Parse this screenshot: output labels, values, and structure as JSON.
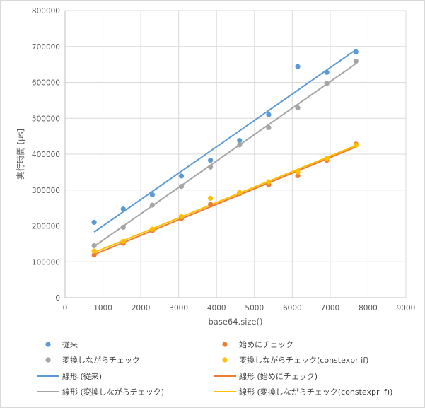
{
  "chart_data": {
    "type": "scatter",
    "title": "",
    "xlabel": "base64.size()",
    "ylabel": "実行時間 [µs]",
    "xlim": [
      0,
      9000
    ],
    "ylim": [
      0,
      800000
    ],
    "xticks": [
      "0",
      "1000",
      "2000",
      "3000",
      "4000",
      "5000",
      "6000",
      "7000",
      "8000",
      "9000"
    ],
    "yticks": [
      "0",
      "100000",
      "200000",
      "300000",
      "400000",
      "500000",
      "600000",
      "700000",
      "800000"
    ],
    "grid": true,
    "legend_position": "bottom",
    "colors": {
      "blue": "#5b9bd5",
      "orange": "#ed7d31",
      "gray": "#a5a5a5",
      "yellow": "#ffc000"
    },
    "x": [
      768,
      1536,
      2304,
      3072,
      3840,
      4608,
      5376,
      6144,
      6912,
      7680
    ],
    "series": [
      {
        "name": "従来",
        "color": "#5b9bd5",
        "values": [
          210000,
          247000,
          287000,
          339000,
          383000,
          438000,
          510000,
          644000,
          628000,
          685000
        ]
      },
      {
        "name": "始めにチェック",
        "color": "#ed7d31",
        "values": [
          119000,
          152000,
          187000,
          221000,
          260000,
          290000,
          315000,
          340000,
          383000,
          428000
        ]
      },
      {
        "name": "変換しながらチェック",
        "color": "#a5a5a5",
        "values": [
          145000,
          196000,
          258000,
          310000,
          364000,
          426000,
          474000,
          529000,
          597000,
          659000
        ]
      },
      {
        "name": "変換しながらチェック(constexpr if)",
        "color": "#ffc000",
        "values": [
          130000,
          157000,
          191000,
          226000,
          277000,
          293000,
          323000,
          350000,
          388000,
          425000
        ]
      }
    ],
    "trendlines": [
      {
        "name": "線形 (従来)",
        "color": "#5b9bd5",
        "from": [
          768,
          183000
        ],
        "to": [
          7680,
          691000
        ]
      },
      {
        "name": "線形 (始めにチェック)",
        "color": "#ed7d31",
        "from": [
          768,
          120000
        ],
        "to": [
          7680,
          420000
        ]
      },
      {
        "name": "線形 (変換しながらチェック)",
        "color": "#a5a5a5",
        "from": [
          768,
          143000
        ],
        "to": [
          7680,
          652000
        ]
      },
      {
        "name": "線形 (変換しながらチェック(constexpr if))",
        "color": "#ffc000",
        "from": [
          768,
          126000
        ],
        "to": [
          7680,
          424000
        ]
      }
    ]
  }
}
